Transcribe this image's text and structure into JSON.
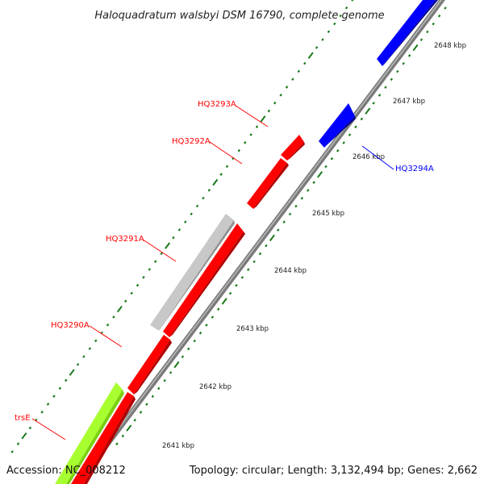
{
  "title": "Haloquadratum walsbyi DSM 16790, complete genome",
  "footer": {
    "accession": "Accession: NC_008212",
    "summary": "Topology: circular; Length: 3,132,494 bp; Genes: 2,662"
  },
  "colors": {
    "forward_gene": "#ff0000",
    "reverse_gene": "#0000ff",
    "trna": "#a8ff30",
    "other_feature": "#c8c8c8",
    "backbone": "#7a7a7a",
    "tick": "#1a7a1a"
  },
  "ticks": [
    {
      "label": "2641 kbp"
    },
    {
      "label": "2642 kbp"
    },
    {
      "label": "2643 kbp"
    },
    {
      "label": "2644 kbp"
    },
    {
      "label": "2645 kbp"
    },
    {
      "label": "2646 kbp"
    },
    {
      "label": "2647 kbp"
    },
    {
      "label": "2648 kbp"
    }
  ],
  "gene_labels": [
    {
      "label": "trsE",
      "color": "#ff0000"
    },
    {
      "label": "HQ3290A",
      "color": "#ff0000"
    },
    {
      "label": "HQ3291A",
      "color": "#ff0000"
    },
    {
      "label": "HQ3292A",
      "color": "#ff0000"
    },
    {
      "label": "HQ3293A",
      "color": "#ff0000"
    },
    {
      "label": "HQ3294A",
      "color": "#0000ff"
    }
  ]
}
